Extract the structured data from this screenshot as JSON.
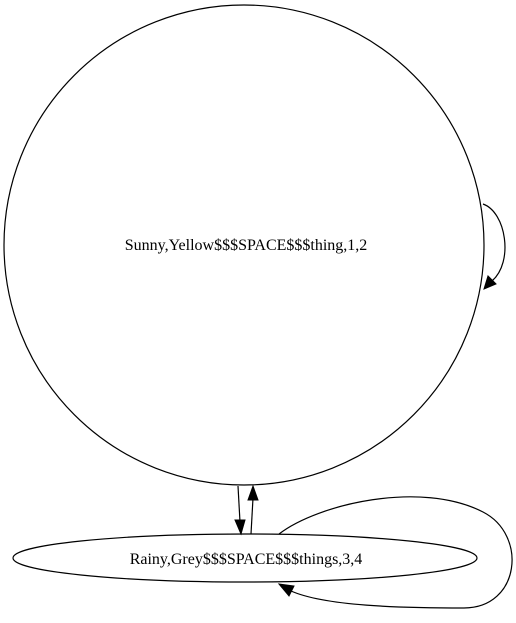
{
  "diagram": {
    "type": "state-graph",
    "nodes": [
      {
        "id": "sunny",
        "label": "Sunny,Yellow$$$SPACE$$$thing,1,2",
        "shape": "circle"
      },
      {
        "id": "rainy",
        "label": "Rainy,Grey$$$SPACE$$$things,3,4",
        "shape": "ellipse"
      }
    ],
    "edges": [
      {
        "from": "sunny",
        "to": "sunny"
      },
      {
        "from": "sunny",
        "to": "rainy"
      },
      {
        "from": "rainy",
        "to": "sunny"
      },
      {
        "from": "rainy",
        "to": "rainy"
      }
    ],
    "colors": {
      "stroke": "#000000",
      "background": "#ffffff"
    }
  }
}
